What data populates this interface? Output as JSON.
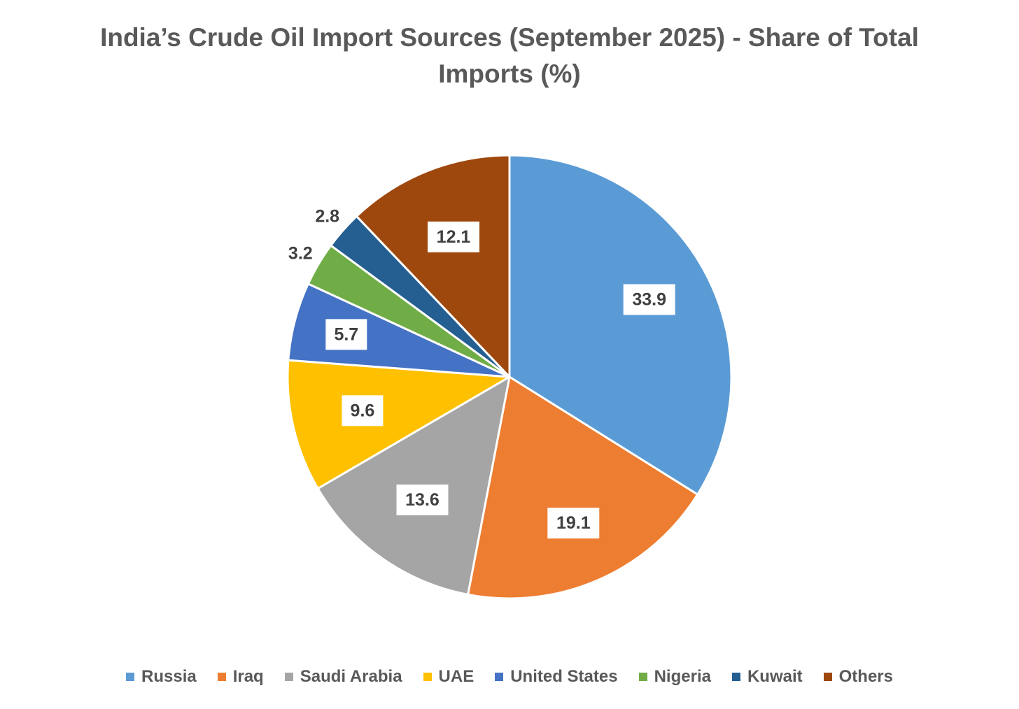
{
  "chart_data": {
    "type": "pie",
    "title": "India’s Crude Oil Import Sources (September 2025) - Share of Total Imports (%)",
    "categories": [
      "Russia",
      "Iraq",
      "Saudi Arabia",
      "UAE",
      "United States",
      "Nigeria",
      "Kuwait",
      "Others"
    ],
    "values": [
      33.9,
      19.1,
      13.6,
      9.6,
      5.7,
      3.2,
      2.8,
      12.1
    ],
    "colors": [
      "#5B9BD5",
      "#ED7D31",
      "#A5A5A5",
      "#FFC000",
      "#4472C4",
      "#70AD47",
      "#255E91",
      "#9E480E"
    ],
    "legend": "bottom",
    "data_labels": true,
    "start_angle": "12 o'clock, clockwise"
  }
}
